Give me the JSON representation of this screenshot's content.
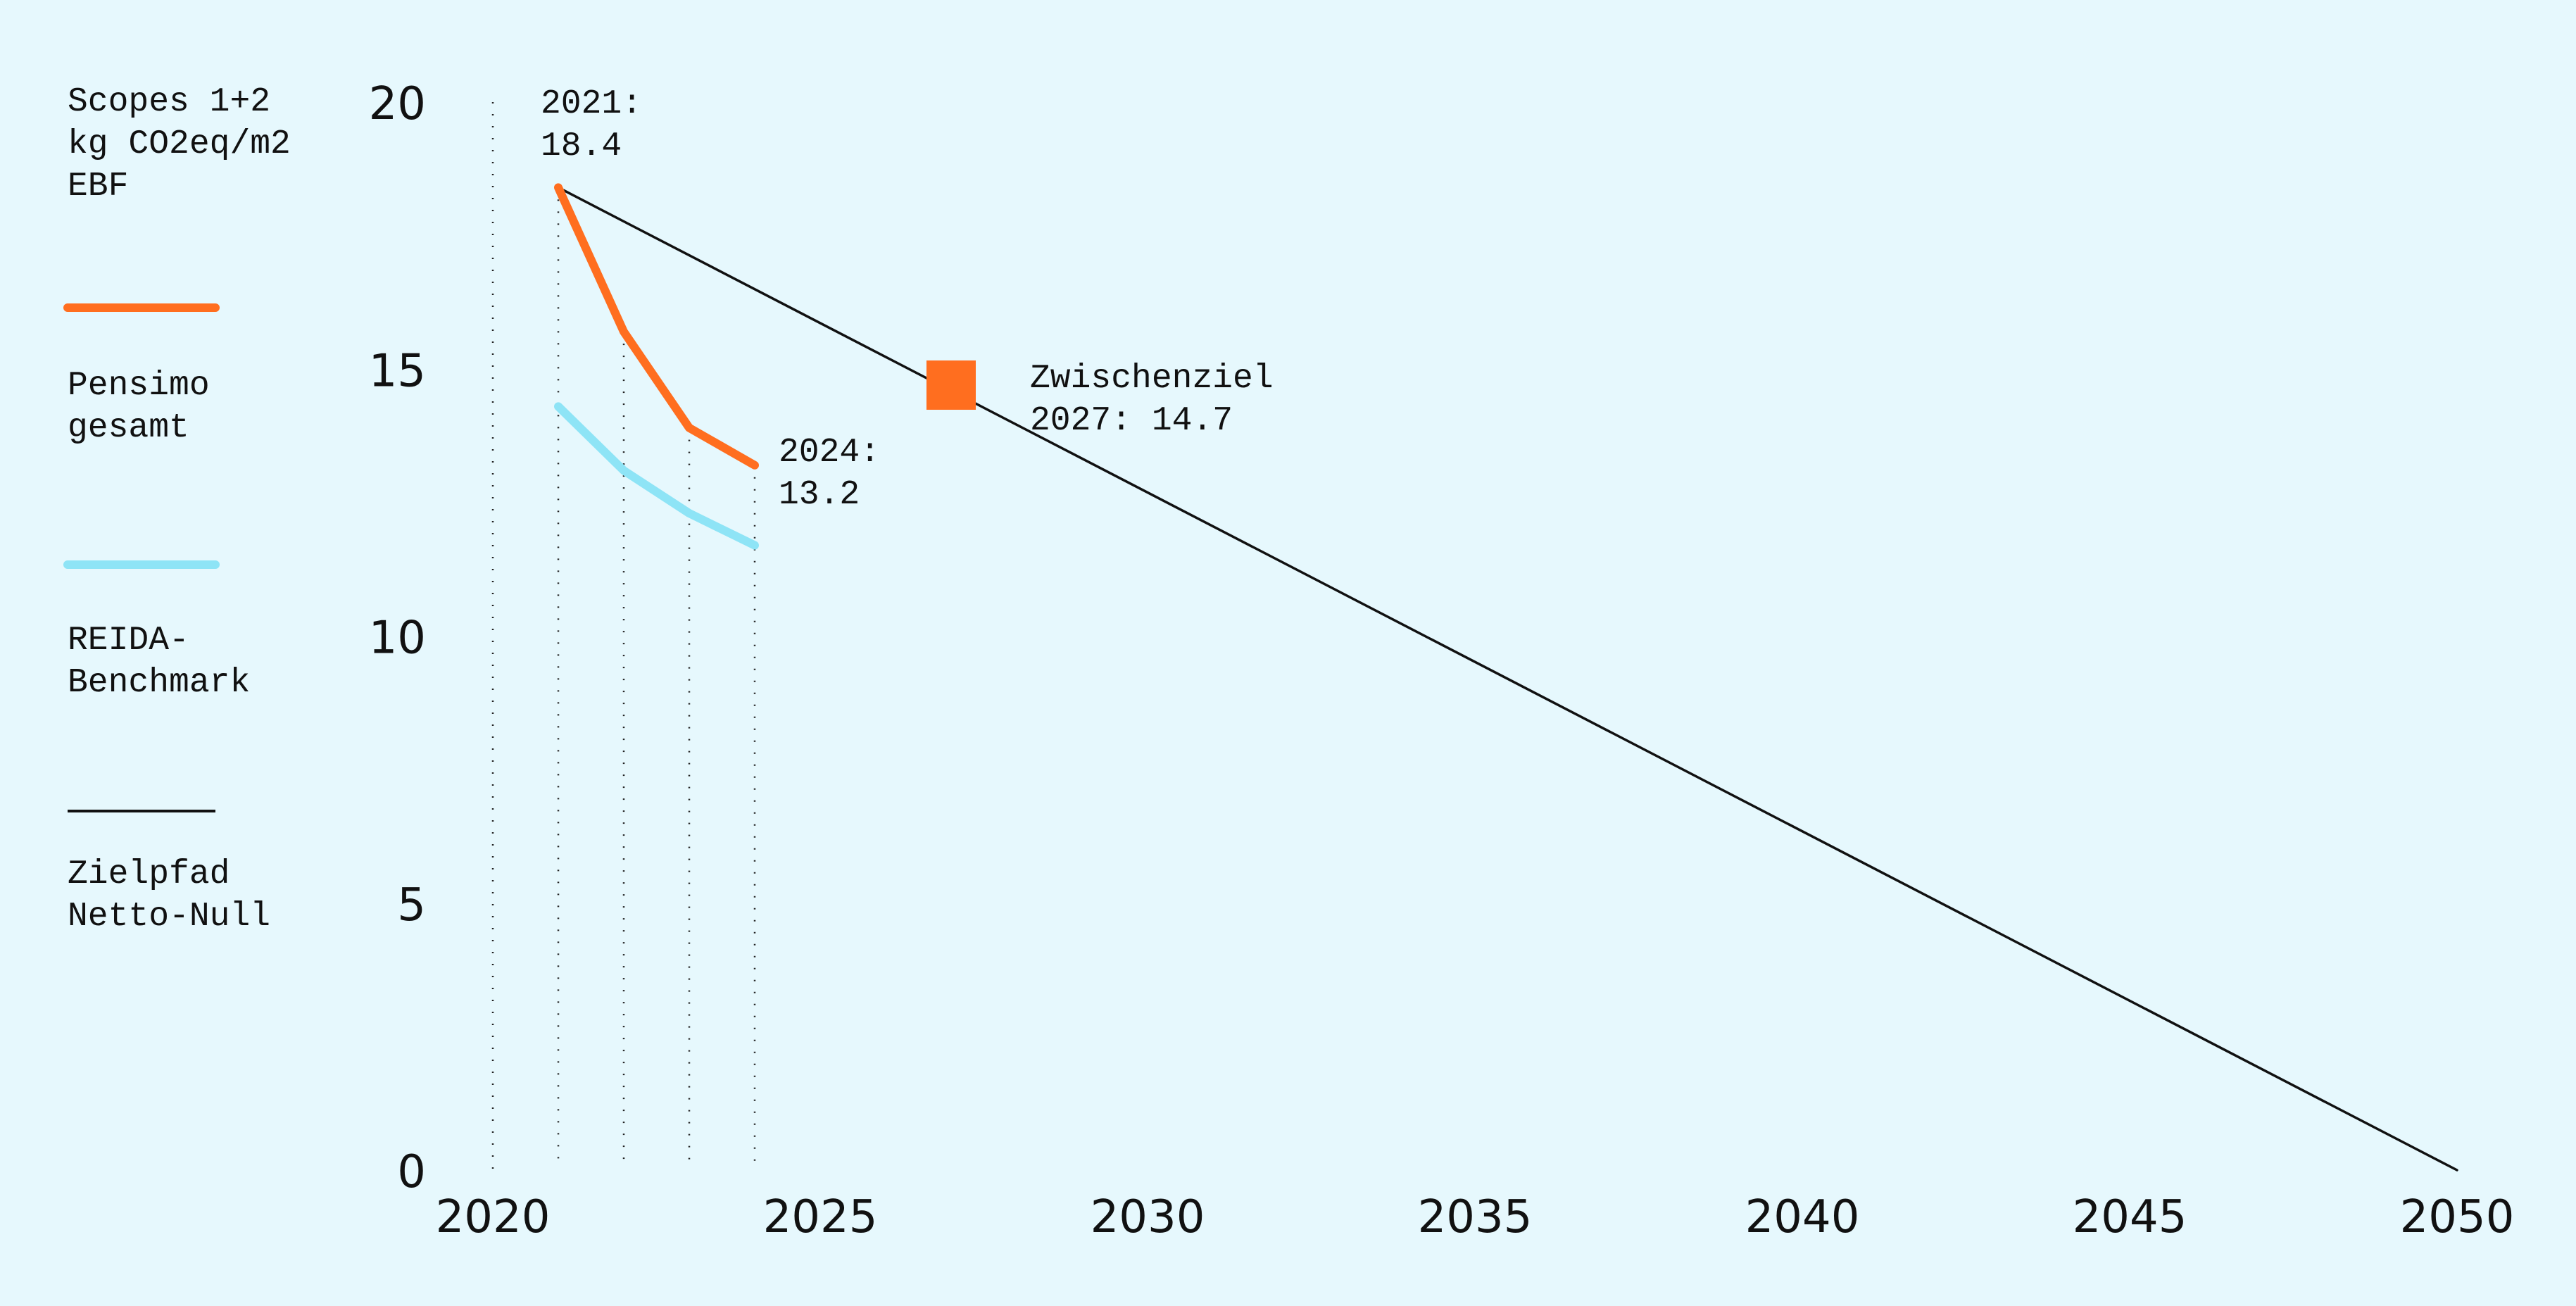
{
  "chart_data": {
    "type": "line",
    "ylabel": [
      "Scopes 1+2",
      "kg CO2eq/m2",
      "EBF"
    ],
    "xlim": [
      2020,
      2050
    ],
    "ylim": [
      0,
      20
    ],
    "xticks": [
      2020,
      2025,
      2030,
      2035,
      2040,
      2045,
      2050
    ],
    "yticks": [
      0,
      5,
      10,
      15,
      20
    ],
    "grid": "dotted vertical lines at 2020, 2021, 2022, 2023, 2024",
    "vlines": [
      2020,
      2021,
      2022,
      2023,
      2024
    ],
    "legend_position": "left",
    "series": [
      {
        "key": "pensimo",
        "name": [
          "Pensimo",
          "gesamt"
        ],
        "color": "#ff6e1f",
        "x": [
          2021,
          2022,
          2023,
          2024
        ],
        "y": [
          18.4,
          15.7,
          13.9,
          13.2
        ]
      },
      {
        "key": "reida",
        "name": [
          "REIDA-",
          "Benchmark"
        ],
        "color": "#8ee4f6",
        "x": [
          2021,
          2022,
          2023,
          2024
        ],
        "y": [
          14.3,
          13.1,
          12.3,
          11.7
        ]
      },
      {
        "key": "zielpfad",
        "name": [
          "Zielpfad",
          "Netto-Null"
        ],
        "color": "#111111",
        "x": [
          2021,
          2050
        ],
        "y": [
          18.4,
          0
        ]
      }
    ],
    "marker": {
      "x": 2027,
      "y": 14.7,
      "color": "#ff6e1f"
    },
    "annotations": [
      {
        "key": "start",
        "lines": [
          "2021:",
          "18.4"
        ]
      },
      {
        "key": "latest",
        "lines": [
          "2024:",
          "13.2"
        ]
      },
      {
        "key": "target",
        "lines": [
          "Zwischenziel",
          "2027: 14.7"
        ]
      }
    ]
  }
}
